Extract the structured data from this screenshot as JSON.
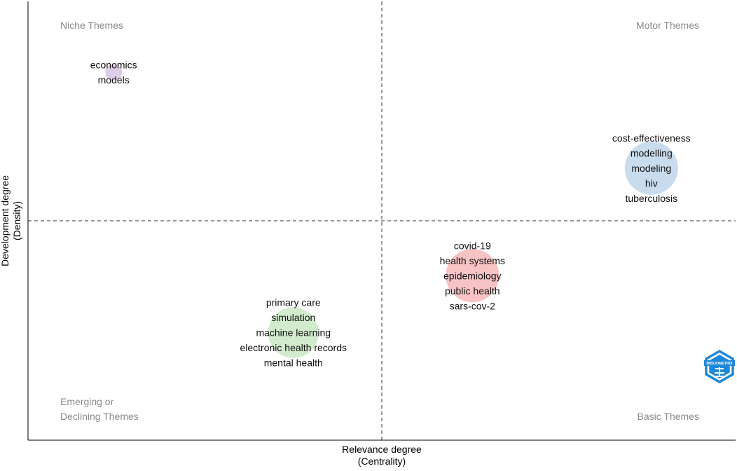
{
  "chart_data": {
    "type": "scatter",
    "title": "",
    "xlabel": "Relevance degree",
    "xlabel_sub": "(Centrality)",
    "ylabel": "Development degree",
    "ylabel_sub": "(Density)",
    "xlim": [
      0,
      1
    ],
    "ylim": [
      0,
      1
    ],
    "grid": false,
    "quadrant_dividers": {
      "x": 0.5,
      "y": 0.5
    },
    "quadrant_labels": {
      "top_left": [
        "Niche Themes"
      ],
      "top_right": [
        "Motor Themes"
      ],
      "bottom_left": [
        "Emerging or",
        "Declining Themes"
      ],
      "bottom_right": [
        "Basic Themes"
      ]
    },
    "clusters": [
      {
        "x": 0.121,
        "y": 0.838,
        "size": 1,
        "color": "#d9c6e4",
        "words": [
          "economics",
          "models"
        ]
      },
      {
        "x": 0.881,
        "y": 0.62,
        "size": 10,
        "color": "#bfd6ea",
        "words": [
          "cost-effectiveness",
          "modelling",
          "modeling",
          "hiv",
          "tuberculosis"
        ]
      },
      {
        "x": 0.628,
        "y": 0.375,
        "size": 10,
        "color": "#f6b9bb",
        "words": [
          "covid-19",
          "health systems",
          "epidemiology",
          "public health",
          "sars-cov-2"
        ]
      },
      {
        "x": 0.375,
        "y": 0.245,
        "size": 9,
        "color": "#c9e8c3",
        "words": [
          "primary care",
          "simulation",
          "machine learning",
          "electronic health records",
          "mental health"
        ]
      }
    ],
    "logo": {
      "icon": "bibliometrix-hexagon-logo",
      "text": "BIBLIOMETRIX",
      "color": "#1e88d8"
    }
  }
}
